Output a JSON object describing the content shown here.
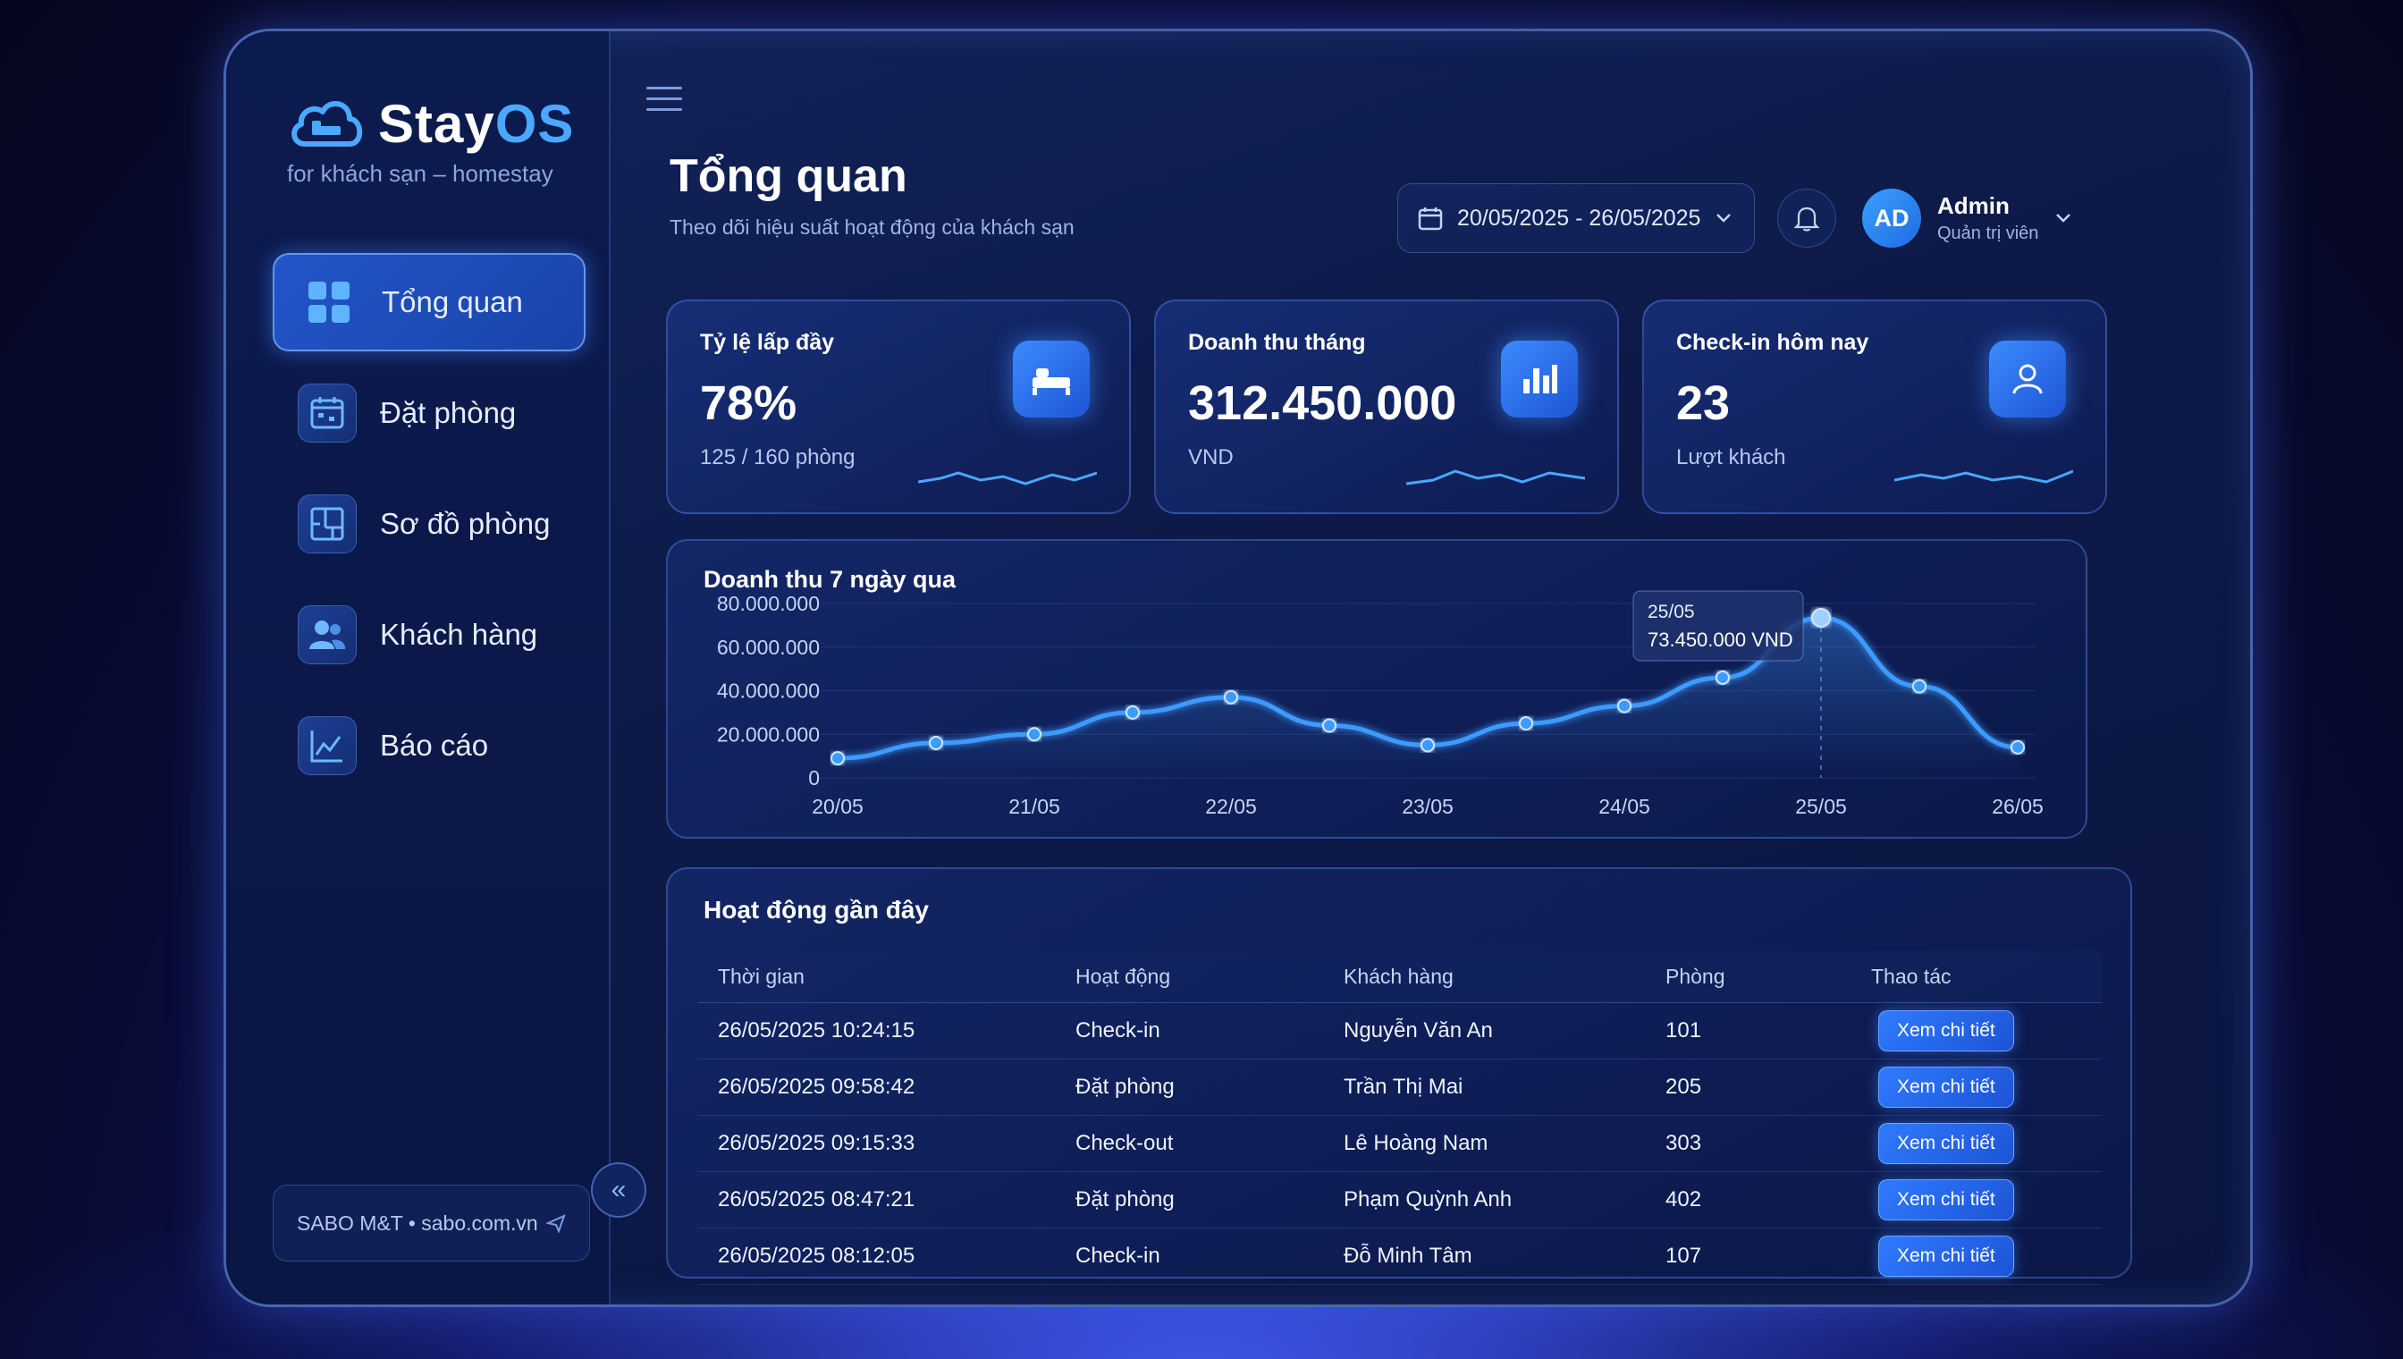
{
  "brand": {
    "name_main": "Stay",
    "name_accent": "OS",
    "tagline": "for khách sạn – homestay"
  },
  "sidebar": {
    "items": [
      {
        "label": "Tổng quan",
        "icon": "dashboard-grid-icon",
        "active": true
      },
      {
        "label": "Đặt phòng",
        "icon": "calendar-icon",
        "active": false
      },
      {
        "label": "Sơ đồ phòng",
        "icon": "floor-plan-icon",
        "active": false
      },
      {
        "label": "Khách hàng",
        "icon": "users-icon",
        "active": false
      },
      {
        "label": "Báo cáo",
        "icon": "line-chart-icon",
        "active": false
      }
    ],
    "footer": "SABO M&T • sabo.com.vn",
    "collapse_glyph": "«"
  },
  "header": {
    "title": "Tổng quan",
    "subtitle": "Theo dõi hiệu suất hoạt động của khách sạn",
    "date_range": "20/05/2025 - 26/05/2025",
    "user": {
      "initials": "AD",
      "name": "Admin",
      "role": "Quản trị viên"
    }
  },
  "stats": [
    {
      "label": "Tỷ lệ lấp đầy",
      "value": "78%",
      "sub": "125 / 160 phòng",
      "icon": "bed-icon"
    },
    {
      "label": "Doanh thu tháng",
      "value": "312.450.000",
      "sub": "VND",
      "icon": "bar-chart-icon"
    },
    {
      "label": "Check-in hôm nay",
      "value": "23",
      "sub": "Lượt khách",
      "icon": "user-icon"
    }
  ],
  "chart_data": {
    "type": "line",
    "title": "Doanh thu 7 ngày qua",
    "categories": [
      "20/05",
      "21/05",
      "22/05",
      "23/05",
      "24/05",
      "25/05",
      "26/05"
    ],
    "yticks": [
      "80.000.000",
      "60.000.000",
      "40.000.000",
      "20.000.000",
      "0"
    ],
    "ylim": [
      0,
      80000000
    ],
    "x": [
      0,
      0.5,
      1,
      1.5,
      2,
      2.5,
      3,
      3.5,
      4,
      4.5,
      5,
      5.5,
      6
    ],
    "values": [
      9000000,
      16000000,
      20000000,
      30000000,
      37000000,
      24000000,
      15000000,
      25000000,
      33000000,
      46000000,
      73450000,
      42000000,
      14000000
    ],
    "tooltip": {
      "date": "25/05",
      "value": "73.450.000 VND"
    },
    "color": "#3d9bff"
  },
  "activity": {
    "title": "Hoạt động gần đây",
    "columns": [
      "Thời gian",
      "Hoạt động",
      "Khách hàng",
      "Phòng",
      "Thao tác"
    ],
    "rows": [
      {
        "time": "26/05/2025 10:24:15",
        "action": "Check-in",
        "guest": "Nguyễn Văn An",
        "room": "101",
        "button": "Xem chi tiết"
      },
      {
        "time": "26/05/2025 09:58:42",
        "action": "Đặt phòng",
        "guest": "Trần Thị Mai",
        "room": "205",
        "button": "Xem chi tiết"
      },
      {
        "time": "26/05/2025 09:15:33",
        "action": "Check-out",
        "guest": "Lê Hoàng Nam",
        "room": "303",
        "button": "Xem chi tiết"
      },
      {
        "time": "26/05/2025 08:47:21",
        "action": "Đặt phòng",
        "guest": "Phạm Quỳnh Anh",
        "room": "402",
        "button": "Xem chi tiết"
      },
      {
        "time": "26/05/2025 08:12:05",
        "action": "Check-in",
        "guest": "Đỗ Minh Tâm",
        "room": "107",
        "button": "Xem chi tiết"
      }
    ]
  }
}
